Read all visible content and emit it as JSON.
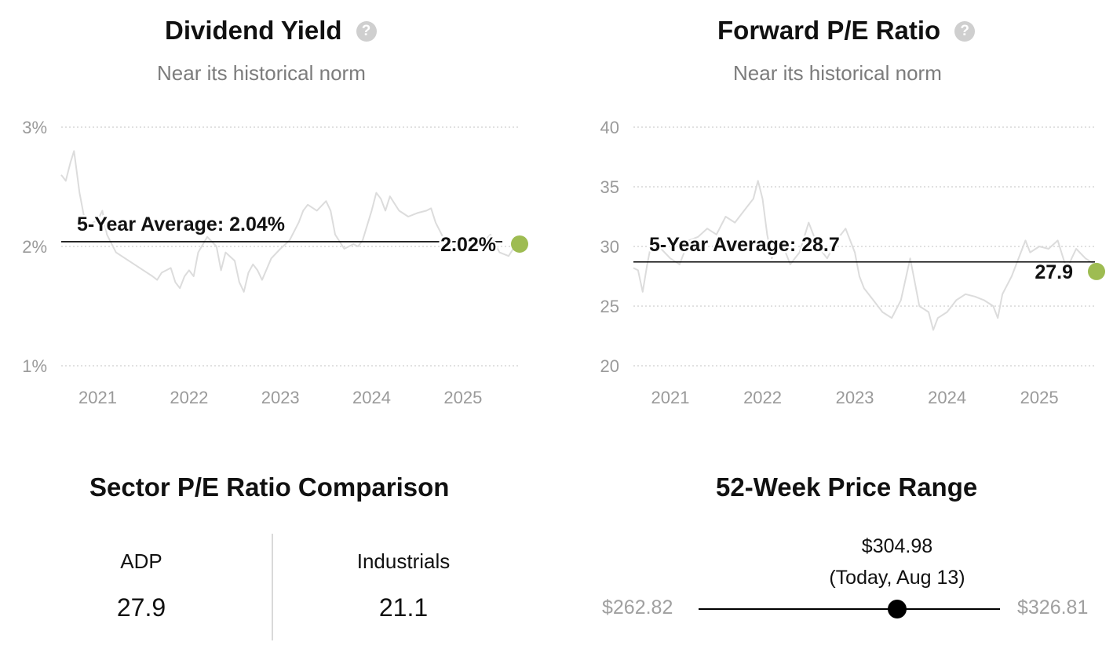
{
  "charts": {
    "dividend": {
      "title": "Dividend Yield",
      "subtitle": "Near its historical norm",
      "help_icon": "question-icon",
      "avg_label": "5-Year Average: 2.04%",
      "current_label": "2.02%"
    },
    "pe": {
      "title": "Forward P/E Ratio",
      "subtitle": "Near its historical norm",
      "help_icon": "question-icon",
      "avg_label": "5-Year Average: 28.7",
      "current_label": "27.9"
    }
  },
  "chart_data": [
    {
      "type": "line",
      "title": "Dividend Yield",
      "ylim": [
        1,
        3
      ],
      "yticks": [
        1,
        2,
        3
      ],
      "ytick_labels": [
        "1%",
        "2%",
        "3%"
      ],
      "xlim": [
        2020.6,
        2025.62
      ],
      "xticks": [
        2021,
        2022,
        2023,
        2024,
        2025
      ],
      "xtick_labels": [
        "2021",
        "2022",
        "2023",
        "2024",
        "2025"
      ],
      "grid": true,
      "average": 2.04,
      "current": {
        "x": 2025.62,
        "y": 2.02
      },
      "colors": {
        "line": "#dcdcdc",
        "average": "#000000",
        "current": "#9ebc52",
        "grid": "#cfcfcf"
      },
      "series": [
        {
          "x": [
            2020.6,
            2020.65,
            2020.7,
            2020.74,
            2020.8,
            2020.85,
            2020.9,
            2020.95,
            2021.0,
            2021.05,
            2021.1,
            2021.2,
            2021.3,
            2021.4,
            2021.5,
            2021.6,
            2021.65,
            2021.7,
            2021.8,
            2021.85,
            2021.9,
            2021.95,
            2022.0,
            2022.05,
            2022.1,
            2022.2,
            2022.3,
            2022.35,
            2022.4,
            2022.5,
            2022.55,
            2022.6,
            2022.65,
            2022.7,
            2022.75,
            2022.8,
            2022.9,
            2023.0,
            2023.1,
            2023.2,
            2023.25,
            2023.3,
            2023.4,
            2023.5,
            2023.55,
            2023.6,
            2023.7,
            2023.8,
            2023.85,
            2023.9,
            2024.0,
            2024.05,
            2024.1,
            2024.15,
            2024.2,
            2024.3,
            2024.4,
            2024.5,
            2024.6,
            2024.65,
            2024.7,
            2024.8,
            2024.9,
            2025.0,
            2025.1,
            2025.2,
            2025.3,
            2025.4,
            2025.5,
            2025.55,
            2025.6
          ],
          "y": [
            2.6,
            2.55,
            2.7,
            2.8,
            2.45,
            2.25,
            2.15,
            2.2,
            2.22,
            2.3,
            2.1,
            1.95,
            1.9,
            1.85,
            1.8,
            1.75,
            1.72,
            1.78,
            1.82,
            1.7,
            1.65,
            1.75,
            1.8,
            1.75,
            1.95,
            2.08,
            2.0,
            1.8,
            1.95,
            1.88,
            1.7,
            1.62,
            1.78,
            1.85,
            1.8,
            1.72,
            1.9,
            1.98,
            2.05,
            2.2,
            2.3,
            2.35,
            2.3,
            2.38,
            2.3,
            2.1,
            1.98,
            2.02,
            2.0,
            2.05,
            2.3,
            2.45,
            2.4,
            2.3,
            2.42,
            2.3,
            2.25,
            2.28,
            2.3,
            2.32,
            2.2,
            2.05,
            1.95,
            2.0,
            2.05,
            2.02,
            2.1,
            1.95,
            1.92,
            1.98,
            2.02
          ]
        }
      ]
    },
    {
      "type": "line",
      "title": "Forward P/E Ratio",
      "ylim": [
        20,
        40
      ],
      "yticks": [
        20,
        25,
        30,
        35,
        40
      ],
      "ytick_labels": [
        "20",
        "25",
        "30",
        "35",
        "40"
      ],
      "xlim": [
        2020.6,
        2025.62
      ],
      "xticks": [
        2021,
        2022,
        2023,
        2024,
        2025
      ],
      "xtick_labels": [
        "2021",
        "2022",
        "2023",
        "2024",
        "2025"
      ],
      "grid": true,
      "average": 28.7,
      "current": {
        "x": 2025.62,
        "y": 27.9
      },
      "colors": {
        "line": "#dcdcdc",
        "average": "#000000",
        "current": "#9ebc52",
        "grid": "#cfcfcf"
      },
      "series": [
        {
          "x": [
            2020.6,
            2020.65,
            2020.7,
            2020.75,
            2020.8,
            2020.9,
            2021.0,
            2021.1,
            2021.2,
            2021.3,
            2021.4,
            2021.5,
            2021.6,
            2021.7,
            2021.8,
            2021.9,
            2021.95,
            2022.0,
            2022.05,
            2022.1,
            2022.2,
            2022.3,
            2022.4,
            2022.5,
            2022.6,
            2022.7,
            2022.8,
            2022.9,
            2023.0,
            2023.05,
            2023.1,
            2023.2,
            2023.3,
            2023.4,
            2023.5,
            2023.6,
            2023.65,
            2023.7,
            2023.8,
            2023.85,
            2023.9,
            2024.0,
            2024.1,
            2024.2,
            2024.3,
            2024.4,
            2024.5,
            2024.55,
            2024.6,
            2024.7,
            2024.8,
            2024.85,
            2024.9,
            2025.0,
            2025.1,
            2025.2,
            2025.3,
            2025.35,
            2025.4,
            2025.5,
            2025.6
          ],
          "y": [
            28.2,
            28.0,
            26.2,
            28.5,
            30.5,
            29.8,
            29.0,
            28.5,
            30.5,
            30.8,
            31.5,
            31.0,
            32.5,
            32.0,
            33.0,
            34.0,
            35.5,
            34.0,
            31.0,
            29.0,
            30.5,
            28.5,
            29.5,
            32.0,
            30.0,
            29.0,
            30.5,
            31.5,
            29.5,
            27.5,
            26.5,
            25.5,
            24.5,
            24.0,
            25.5,
            29.0,
            27.0,
            25.0,
            24.5,
            23.0,
            24.0,
            24.5,
            25.5,
            26.0,
            25.8,
            25.5,
            25.0,
            24.0,
            26.0,
            27.5,
            29.5,
            30.5,
            29.5,
            30.0,
            29.8,
            30.5,
            28.0,
            29.0,
            29.8,
            29.0,
            28.5
          ]
        }
      ]
    }
  ],
  "sector": {
    "title": "Sector P/E Ratio Comparison",
    "items": [
      {
        "label": "ADP",
        "value": "27.9"
      },
      {
        "label": "Industrials",
        "value": "21.1"
      }
    ]
  },
  "range": {
    "title": "52-Week Price Range",
    "low": "$262.82",
    "high": "$326.81",
    "current_price": "$304.98",
    "current_date": "(Today, Aug 13)",
    "low_value": 262.82,
    "high_value": 326.81,
    "current_value": 304.98
  }
}
